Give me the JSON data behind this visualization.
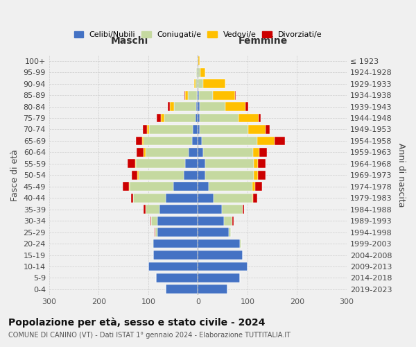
{
  "age_groups": [
    "0-4",
    "5-9",
    "10-14",
    "15-19",
    "20-24",
    "25-29",
    "30-34",
    "35-39",
    "40-44",
    "45-49",
    "50-54",
    "55-59",
    "60-64",
    "65-69",
    "70-74",
    "75-79",
    "80-84",
    "85-89",
    "90-94",
    "95-99",
    "100+"
  ],
  "birth_years": [
    "2019-2023",
    "2014-2018",
    "2009-2013",
    "2004-2008",
    "1999-2003",
    "1994-1998",
    "1989-1993",
    "1984-1988",
    "1979-1983",
    "1974-1978",
    "1969-1973",
    "1964-1968",
    "1959-1963",
    "1954-1958",
    "1949-1953",
    "1944-1948",
    "1939-1943",
    "1934-1938",
    "1929-1933",
    "1924-1928",
    "≤ 1923"
  ],
  "males": {
    "celibi": [
      65,
      85,
      100,
      90,
      90,
      82,
      82,
      78,
      65,
      50,
      28,
      25,
      18,
      12,
      10,
      5,
      4,
      2,
      1,
      1,
      1
    ],
    "coniugati": [
      0,
      0,
      0,
      0,
      2,
      4,
      12,
      28,
      65,
      88,
      92,
      100,
      88,
      98,
      88,
      62,
      44,
      18,
      4,
      2,
      0
    ],
    "vedovi": [
      0,
      0,
      0,
      0,
      0,
      0,
      0,
      0,
      0,
      1,
      2,
      2,
      3,
      3,
      5,
      8,
      8,
      5,
      2,
      1,
      0
    ],
    "divorziati": [
      0,
      0,
      0,
      0,
      0,
      1,
      2,
      3,
      5,
      12,
      12,
      15,
      15,
      12,
      8,
      8,
      5,
      2,
      0,
      0,
      0
    ]
  },
  "females": {
    "nubili": [
      60,
      85,
      100,
      90,
      85,
      62,
      52,
      48,
      32,
      22,
      15,
      15,
      10,
      8,
      4,
      4,
      4,
      2,
      1,
      1,
      1
    ],
    "coniugate": [
      0,
      0,
      0,
      0,
      2,
      4,
      18,
      42,
      78,
      88,
      98,
      98,
      102,
      112,
      98,
      78,
      52,
      28,
      10,
      4,
      0
    ],
    "vedove": [
      0,
      0,
      0,
      0,
      0,
      0,
      0,
      0,
      2,
      5,
      8,
      8,
      12,
      35,
      35,
      40,
      40,
      45,
      45,
      10,
      2
    ],
    "divorziate": [
      0,
      0,
      0,
      0,
      0,
      1,
      2,
      3,
      8,
      15,
      15,
      15,
      15,
      20,
      8,
      5,
      5,
      2,
      0,
      0,
      0
    ]
  },
  "color_celibi": "#4472c4",
  "color_coniugati": "#c5d9a0",
  "color_vedovi": "#ffc000",
  "color_divorziati": "#cc0000",
  "title": "Popolazione per età, sesso e stato civile - 2024",
  "subtitle": "COMUNE DI CANINO (VT) - Dati ISTAT 1° gennaio 2024 - Elaborazione TUTTITALIA.IT",
  "xlabel_left": "Maschi",
  "xlabel_right": "Femmine",
  "ylabel_left": "Fasce di età",
  "ylabel_right": "Anni di nascita",
  "xlim": 300,
  "bg_color": "#f0f0f0",
  "legend_labels": [
    "Celibi/Nubili",
    "Coniugati/e",
    "Vedovi/e",
    "Divorziati/e"
  ]
}
